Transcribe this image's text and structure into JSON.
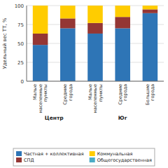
{
  "chart_data": {
    "type": "bar",
    "stacked": true,
    "categories": [
      "Малые\nнаселенные\nпункты",
      "Средние\nгорода",
      "Малые\nнаселенные\nпункты",
      "Средние\nгорода",
      "Большие\nгорода"
    ],
    "regions": [
      "Центр",
      "Центр",
      "Юг",
      "Юг",
      "Юг"
    ],
    "series": [
      {
        "name": "Частная + коллективная",
        "color": "#2E75B6",
        "values": [
          48,
          70,
          63,
          70,
          90
        ]
      },
      {
        "name": "СПД",
        "color": "#943634",
        "values": [
          15,
          13,
          14,
          15,
          5
        ]
      },
      {
        "name": "Коммунальная",
        "color": "#FFCC00",
        "values": [
          37,
          17,
          23,
          15,
          5
        ]
      },
      {
        "name": "Общегосударственная",
        "color": "#4BACC6",
        "values": [
          0,
          0,
          0,
          0,
          0
        ]
      }
    ],
    "ylabel": "Удельный вес ТТ, %",
    "ylim": [
      0,
      100
    ],
    "yticks": [
      0,
      25,
      50,
      75,
      100
    ],
    "grid": true,
    "legend": "bottom"
  }
}
